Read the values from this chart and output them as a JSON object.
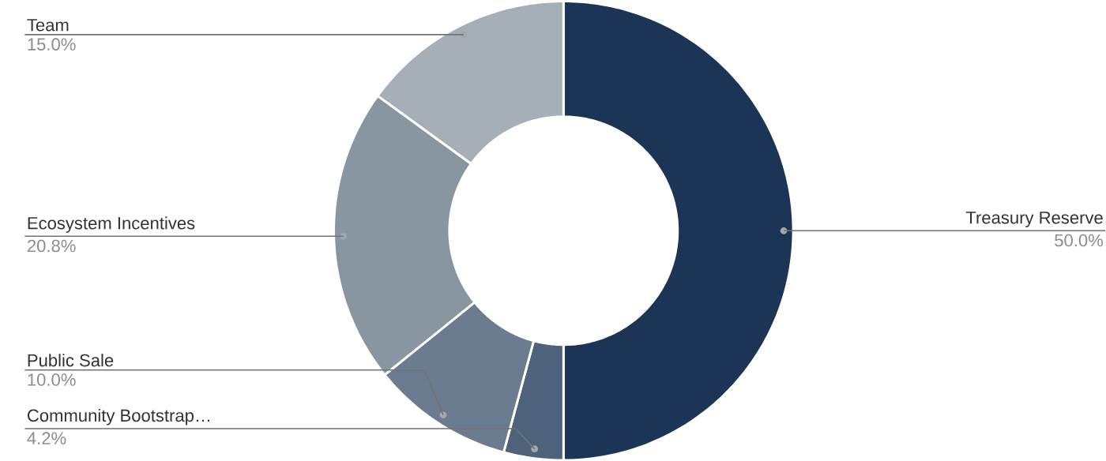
{
  "chart_data": {
    "type": "donut",
    "categories": [
      "Treasury Reserve",
      "Community Bootstrap…",
      "Public Sale",
      "Ecosystem Incentives",
      "Team"
    ],
    "values": [
      50.0,
      4.2,
      10.0,
      20.8,
      15.0
    ],
    "value_labels": [
      "50.0%",
      "4.2%",
      "10.0%",
      "20.8%",
      "15.0%"
    ],
    "colors": [
      "#1c3456",
      "#4e627c",
      "#6b7b90",
      "#8896a2",
      "#a4afb7"
    ]
  }
}
